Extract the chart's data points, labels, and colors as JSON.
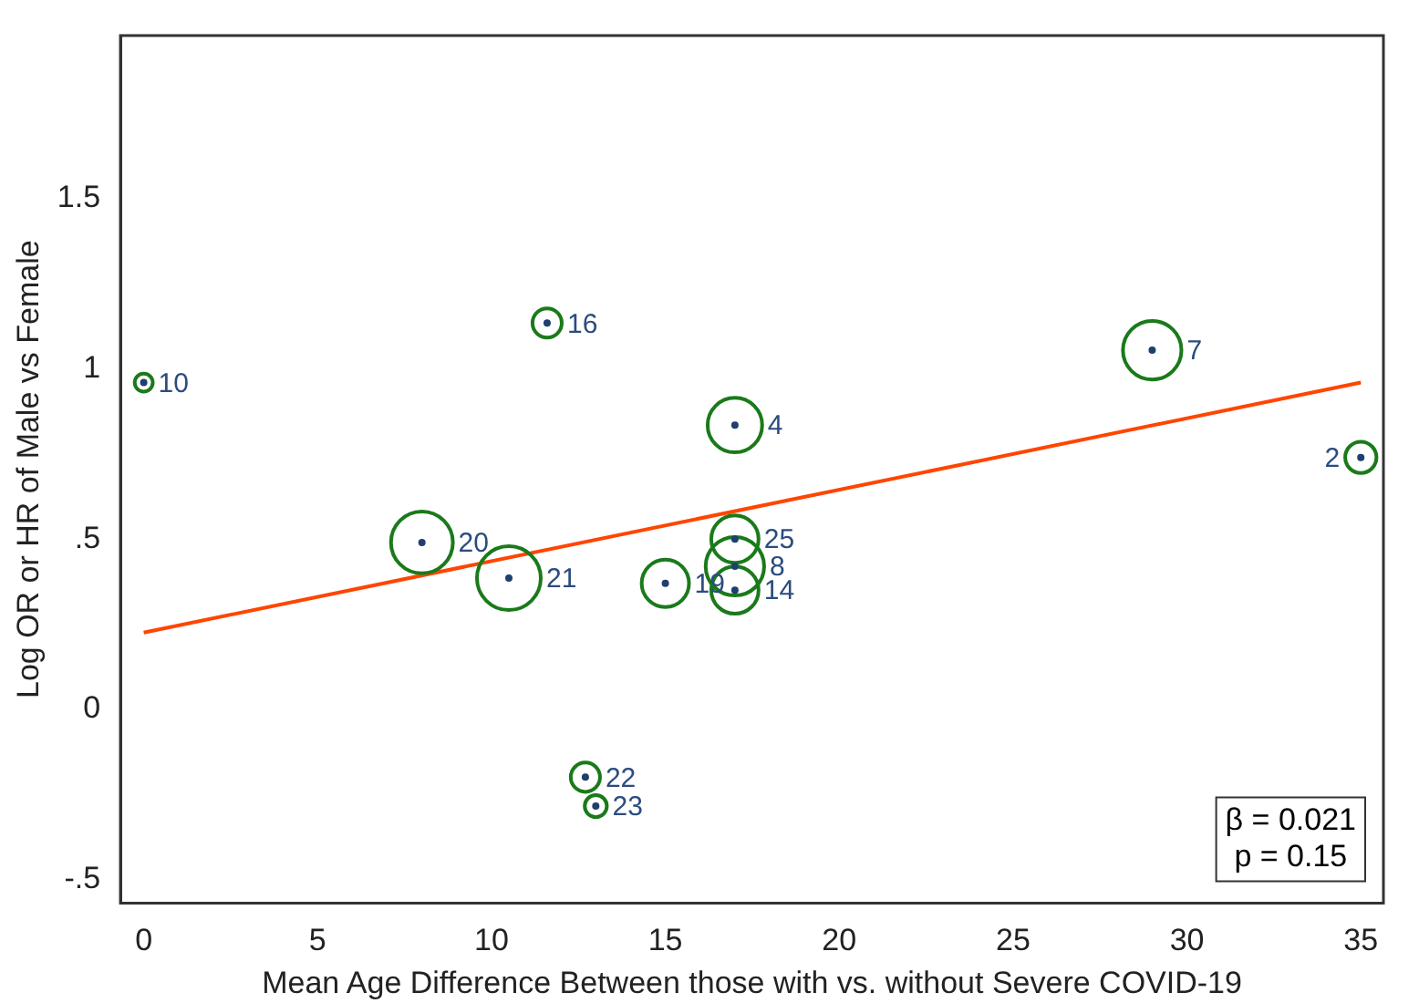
{
  "chart_data": {
    "type": "bubble",
    "xlabel": "Mean Age Difference Between those with vs. without Severe COVID-19",
    "ylabel": "Log OR or HR of Male vs Female",
    "xlim": [
      -0.67,
      35.65
    ],
    "xticks": [
      0,
      5,
      10,
      15,
      20,
      25,
      30,
      35
    ],
    "ylim": [
      -0.57,
      1.98
    ],
    "yticks": [
      {
        "value": -0.5,
        "label": "-.5"
      },
      0,
      {
        "value": 0.5,
        "label": ".5"
      },
      1,
      1.5
    ],
    "grid": false,
    "legend": false,
    "series": [
      {
        "color": "#1a7a1a",
        "x": [
          0,
          11.6,
          8.0,
          10.5,
          17.0,
          17.0,
          17.0,
          17.0,
          15.0,
          12.7,
          13.0,
          29.0,
          35.0
        ],
        "values": [
          0.96,
          1.135,
          0.49,
          0.385,
          0.835,
          0.5,
          0.42,
          0.35,
          0.37,
          -0.2,
          -0.285,
          1.055,
          0.74
        ],
        "sizes": [
          0.08,
          0.21,
          0.94,
          1,
          0.73,
          0.55,
          0.84,
          0.55,
          0.55,
          0.21,
          0.12,
          0.84,
          0.24
        ]
      },
      {
        "type": "line",
        "color": "#ff4500",
        "x": [
          0,
          35
        ],
        "values": [
          0.225,
          0.96
        ]
      }
    ],
    "annotations": [
      {
        "text": "10",
        "x": 0,
        "y": 0.96
      },
      {
        "text": "16",
        "x": 11.6,
        "y": 1.135
      },
      {
        "text": "20",
        "x": 8.0,
        "y": 0.49
      },
      {
        "text": "21",
        "x": 10.5,
        "y": 0.385
      },
      {
        "text": "4",
        "x": 17.0,
        "y": 0.835
      },
      {
        "text": "25",
        "x": 17.0,
        "y": 0.5
      },
      {
        "text": "8",
        "x": 17.0,
        "y": 0.42
      },
      {
        "text": "14",
        "x": 17.0,
        "y": 0.35
      },
      {
        "text": "19",
        "x": 15.0,
        "y": 0.37
      },
      {
        "text": "22",
        "x": 12.7,
        "y": -0.2
      },
      {
        "text": "23",
        "x": 13.0,
        "y": -0.285
      },
      {
        "text": "7",
        "x": 29.0,
        "y": 1.055
      },
      {
        "text": "2",
        "x": 35.0,
        "y": 0.74
      },
      "β = 0.021",
      "p = 0.15"
    ]
  }
}
